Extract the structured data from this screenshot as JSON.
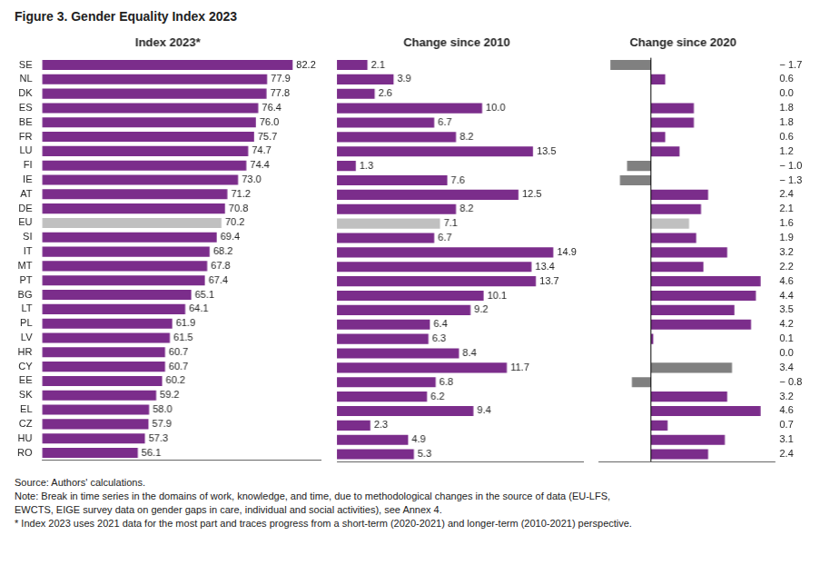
{
  "chart_data": [
    {
      "type": "bar",
      "orientation": "horizontal",
      "title": "Index 2023*",
      "categories": [
        "SE",
        "NL",
        "DK",
        "ES",
        "BE",
        "FR",
        "LU",
        "FI",
        "IE",
        "AT",
        "DE",
        "EU",
        "SI",
        "IT",
        "MT",
        "PT",
        "BG",
        "LT",
        "PL",
        "LV",
        "HR",
        "CY",
        "EE",
        "SK",
        "EL",
        "CZ",
        "HU",
        "RO"
      ],
      "values": [
        82.2,
        77.9,
        77.8,
        76.4,
        76.0,
        75.7,
        74.7,
        74.4,
        73.0,
        71.2,
        70.8,
        70.2,
        69.4,
        68.2,
        67.8,
        67.4,
        65.1,
        64.1,
        61.9,
        61.5,
        60.7,
        60.7,
        60.2,
        59.2,
        58.0,
        57.9,
        57.3,
        56.1
      ],
      "value_labels": [
        "82.2",
        "77.9",
        "77.8",
        "76.4",
        "76.0",
        "75.7",
        "74.7",
        "74.4",
        "73.0",
        "71.2",
        "70.8",
        "70.2",
        "69.4",
        "68.2",
        "67.8",
        "67.4",
        "65.1",
        "64.1",
        "61.9",
        "61.5",
        "60.7",
        "60.7",
        "60.2",
        "59.2",
        "58.0",
        "57.9",
        "57.3",
        "56.1"
      ],
      "colors": [
        "#7b2d8b",
        "#7b2d8b",
        "#7b2d8b",
        "#7b2d8b",
        "#7b2d8b",
        "#7b2d8b",
        "#7b2d8b",
        "#7b2d8b",
        "#7b2d8b",
        "#7b2d8b",
        "#7b2d8b",
        "#c0c0c0",
        "#7b2d8b",
        "#7b2d8b",
        "#7b2d8b",
        "#7b2d8b",
        "#7b2d8b",
        "#7b2d8b",
        "#7b2d8b",
        "#7b2d8b",
        "#7b2d8b",
        "#7b2d8b",
        "#7b2d8b",
        "#7b2d8b",
        "#7b2d8b",
        "#7b2d8b",
        "#7b2d8b",
        "#7b2d8b"
      ],
      "xlim": [
        40,
        87
      ],
      "data_labels": true,
      "grid": false,
      "tick_labels": "y",
      "annotations": [
        "Figure 3. Gender Equality Index 2023",
        "Source: Authors' calculations.",
        "Note: Break in time series in the domains of work, knowledge, and time, due to methodological changes in the source of data (EU-LFS,",
        "EWCTS, EIGE survey data on gender gaps in care, individual and social activities), see Annex 4.",
        "* Index 2023 uses 2021 data for the most part and traces progress from a short-term (2020-2021) and longer-term (2010-2021) perspective."
      ]
    },
    {
      "type": "bar",
      "orientation": "horizontal",
      "title": "Change since 2010",
      "categories": [
        "SE",
        "NL",
        "DK",
        "ES",
        "BE",
        "FR",
        "LU",
        "FI",
        "IE",
        "AT",
        "DE",
        "EU",
        "SI",
        "IT",
        "MT",
        "PT",
        "BG",
        "LT",
        "PL",
        "LV",
        "HR",
        "CY",
        "EE",
        "SK",
        "EL",
        "CZ",
        "HU",
        "RO"
      ],
      "values": [
        2.1,
        3.9,
        2.6,
        10.0,
        6.7,
        8.2,
        13.5,
        1.3,
        7.6,
        12.5,
        8.2,
        7.1,
        6.7,
        14.9,
        13.4,
        13.7,
        10.1,
        9.2,
        6.4,
        6.3,
        8.4,
        11.7,
        6.8,
        6.2,
        9.4,
        2.3,
        4.9,
        5.3
      ],
      "value_labels": [
        "2.1",
        "3.9",
        "2.6",
        "10.0",
        "6.7",
        "8.2",
        "13.5",
        "1.3",
        "7.6",
        "12.5",
        "8.2",
        "7.1",
        "6.7",
        "14.9",
        "13.4",
        "13.7",
        "10.1",
        "9.2",
        "6.4",
        "6.3",
        "8.4",
        "11.7",
        "6.8",
        "6.2",
        "9.4",
        "2.3",
        "4.9",
        "5.3"
      ],
      "colors": [
        "#7b2d8b",
        "#7b2d8b",
        "#7b2d8b",
        "#7b2d8b",
        "#7b2d8b",
        "#7b2d8b",
        "#7b2d8b",
        "#7b2d8b",
        "#7b2d8b",
        "#7b2d8b",
        "#7b2d8b",
        "#c0c0c0",
        "#7b2d8b",
        "#7b2d8b",
        "#7b2d8b",
        "#7b2d8b",
        "#7b2d8b",
        "#7b2d8b",
        "#7b2d8b",
        "#7b2d8b",
        "#7b2d8b",
        "#7b2d8b",
        "#7b2d8b",
        "#7b2d8b",
        "#7b2d8b",
        "#7b2d8b",
        "#7b2d8b",
        "#7b2d8b"
      ],
      "xlim": [
        0,
        17
      ],
      "data_labels": true,
      "grid": false,
      "tick_labels": false
    },
    {
      "type": "bar",
      "orientation": "horizontal",
      "title": "Change since 2020",
      "categories": [
        "SE",
        "NL",
        "DK",
        "ES",
        "BE",
        "FR",
        "LU",
        "FI",
        "IE",
        "AT",
        "DE",
        "EU",
        "SI",
        "IT",
        "MT",
        "PT",
        "BG",
        "LT",
        "PL",
        "LV",
        "HR",
        "CY",
        "EE",
        "SK",
        "EL",
        "CZ",
        "HU",
        "RO"
      ],
      "values": [
        -1.7,
        0.6,
        0.0,
        1.8,
        1.8,
        0.6,
        1.2,
        -1.0,
        -1.3,
        2.4,
        2.1,
        1.6,
        1.9,
        3.2,
        2.2,
        4.6,
        4.4,
        3.5,
        4.2,
        0.1,
        0.0,
        3.4,
        -0.8,
        3.2,
        4.6,
        0.7,
        3.1,
        2.4
      ],
      "value_labels": [
        "− 1.7",
        "0.6",
        "0.0",
        "1.8",
        "1.8",
        "0.6",
        "1.2",
        "− 1.0",
        "− 1.3",
        "2.4",
        "2.1",
        "1.6",
        "1.9",
        "3.2",
        "2.2",
        "4.6",
        "4.4",
        "3.5",
        "4.2",
        "0.1",
        "0.0",
        "3.4",
        "− 0.8",
        "3.2",
        "4.6",
        "0.7",
        "3.1",
        "2.4"
      ],
      "colors": [
        "#808080",
        "#7b2d8b",
        "#7b2d8b",
        "#7b2d8b",
        "#7b2d8b",
        "#7b2d8b",
        "#7b2d8b",
        "#808080",
        "#808080",
        "#7b2d8b",
        "#7b2d8b",
        "#c0c0c0",
        "#7b2d8b",
        "#7b2d8b",
        "#7b2d8b",
        "#7b2d8b",
        "#7b2d8b",
        "#7b2d8b",
        "#7b2d8b",
        "#7b2d8b",
        "#7b2d8b",
        "#808080",
        "#808080",
        "#7b2d8b",
        "#7b2d8b",
        "#7b2d8b",
        "#7b2d8b",
        "#7b2d8b"
      ],
      "xlim": [
        -2.2,
        5.2
      ],
      "data_labels": true,
      "grid": false,
      "tick_labels": false
    }
  ]
}
